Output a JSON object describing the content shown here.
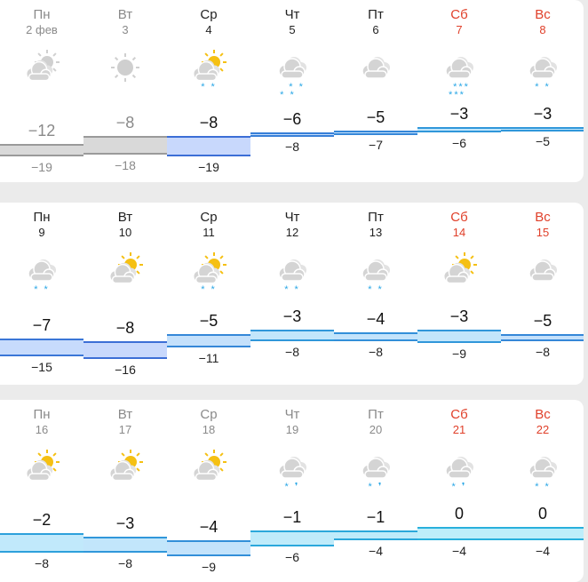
{
  "colors": {
    "weekend": "#e0402a",
    "past_fill": "#d9d9d9",
    "past_border": "#9a9a9a",
    "snow": "#2aa7e6",
    "sun": "#f5c013",
    "cloud": "#d6d6d6"
  },
  "weeks": [
    {
      "days": [
        {
          "dow": "Пн",
          "date": "2 фев",
          "max": "−12",
          "min": "−19",
          "icon": "partly-cloudy-grey",
          "precip": [],
          "state": "past",
          "weekend": false
        },
        {
          "dow": "Вт",
          "date": "3",
          "max": "−8",
          "min": "−18",
          "icon": "sun-grey",
          "precip": [],
          "state": "past",
          "weekend": false
        },
        {
          "dow": "Ср",
          "date": "4",
          "max": "−8",
          "min": "−19",
          "icon": "partly-cloudy",
          "precip": [
            "* *"
          ],
          "state": "today",
          "weekend": false
        },
        {
          "dow": "Чт",
          "date": "5",
          "max": "−6",
          "min": "−8",
          "icon": "cloudy",
          "precip": [
            "  * *",
            "* *  "
          ],
          "state": "future",
          "weekend": false
        },
        {
          "dow": "Пт",
          "date": "6",
          "max": "−5",
          "min": "−7",
          "icon": "cloudy",
          "precip": [],
          "state": "future",
          "weekend": false
        },
        {
          "dow": "Сб",
          "date": "7",
          "max": "−3",
          "min": "−6",
          "icon": "cloudy",
          "precip": [
            " ***",
            "*** "
          ],
          "state": "future",
          "weekend": true
        },
        {
          "dow": "Вс",
          "date": "8",
          "max": "−3",
          "min": "−5",
          "icon": "cloudy",
          "precip": [
            "* *"
          ],
          "state": "future",
          "weekend": true
        }
      ]
    },
    {
      "days": [
        {
          "dow": "Пн",
          "date": "9",
          "max": "−7",
          "min": "−15",
          "icon": "cloudy",
          "precip": [
            "* *"
          ],
          "state": "future",
          "weekend": false
        },
        {
          "dow": "Вт",
          "date": "10",
          "max": "−8",
          "min": "−16",
          "icon": "partly-cloudy",
          "precip": [],
          "state": "future",
          "weekend": false
        },
        {
          "dow": "Ср",
          "date": "11",
          "max": "−5",
          "min": "−11",
          "icon": "partly-cloudy",
          "precip": [
            "* *"
          ],
          "state": "future",
          "weekend": false
        },
        {
          "dow": "Чт",
          "date": "12",
          "max": "−3",
          "min": "−8",
          "icon": "cloudy",
          "precip": [
            "* *"
          ],
          "state": "future",
          "weekend": false
        },
        {
          "dow": "Пт",
          "date": "13",
          "max": "−4",
          "min": "−8",
          "icon": "cloudy",
          "precip": [
            "* *"
          ],
          "state": "future",
          "weekend": false
        },
        {
          "dow": "Сб",
          "date": "14",
          "max": "−3",
          "min": "−9",
          "icon": "partly-cloudy",
          "precip": [],
          "state": "future",
          "weekend": true
        },
        {
          "dow": "Вс",
          "date": "15",
          "max": "−5",
          "min": "−8",
          "icon": "cloudy",
          "precip": [],
          "state": "future",
          "weekend": true
        }
      ]
    },
    {
      "days": [
        {
          "dow": "Пн",
          "date": "16",
          "max": "−2",
          "min": "−8",
          "icon": "partly-cloudy",
          "precip": [],
          "state": "muted",
          "weekend": false
        },
        {
          "dow": "Вт",
          "date": "17",
          "max": "−3",
          "min": "−8",
          "icon": "partly-cloudy",
          "precip": [],
          "state": "muted",
          "weekend": false
        },
        {
          "dow": "Ср",
          "date": "18",
          "max": "−4",
          "min": "−9",
          "icon": "partly-cloudy",
          "precip": [],
          "state": "muted",
          "weekend": false
        },
        {
          "dow": "Чт",
          "date": "19",
          "max": "−1",
          "min": "−6",
          "icon": "cloudy",
          "precip": [
            "* ❜"
          ],
          "state": "muted",
          "weekend": false
        },
        {
          "dow": "Пт",
          "date": "20",
          "max": "−1",
          "min": "−4",
          "icon": "cloudy",
          "precip": [
            "* ❜"
          ],
          "state": "muted",
          "weekend": false
        },
        {
          "dow": "Сб",
          "date": "21",
          "max": "0",
          "min": "−4",
          "icon": "cloudy",
          "precip": [
            "* ❜"
          ],
          "state": "muted",
          "weekend": true
        },
        {
          "dow": "Вс",
          "date": "22",
          "max": "0",
          "min": "−4",
          "icon": "cloudy",
          "precip": [
            "* *"
          ],
          "state": "muted",
          "weekend": true
        }
      ]
    }
  ]
}
